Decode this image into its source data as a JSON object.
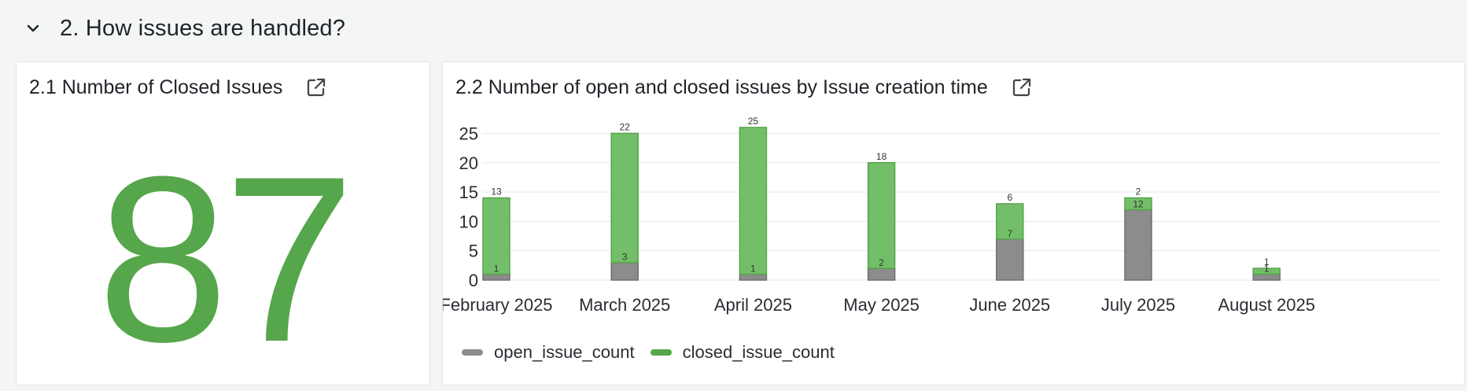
{
  "section": {
    "title": "2. How issues are handled?"
  },
  "panel1": {
    "title": "2.1 Number of Closed Issues",
    "value": "87",
    "color": "#56a64b"
  },
  "panel2": {
    "title": "2.2 Number of open and closed issues by Issue creation time"
  },
  "colors": {
    "open": "#8c8c8c",
    "closed": "#73bf69",
    "closed_border": "#56a64b",
    "open_border": "#6e6e6e"
  },
  "chart_data": {
    "type": "bar",
    "stacked": true,
    "categories": [
      "February 2025",
      "March 2025",
      "April 2025",
      "May 2025",
      "June 2025",
      "July 2025",
      "August 2025"
    ],
    "series": [
      {
        "name": "open_issue_count",
        "values": [
          1,
          3,
          1,
          2,
          7,
          12,
          1
        ]
      },
      {
        "name": "closed_issue_count",
        "values": [
          13,
          22,
          25,
          18,
          6,
          2,
          1
        ]
      }
    ],
    "y_ticks": [
      0,
      5,
      10,
      15,
      20,
      25
    ],
    "ylim": [
      0,
      26
    ],
    "grid": true,
    "legend": "bottom-left"
  }
}
